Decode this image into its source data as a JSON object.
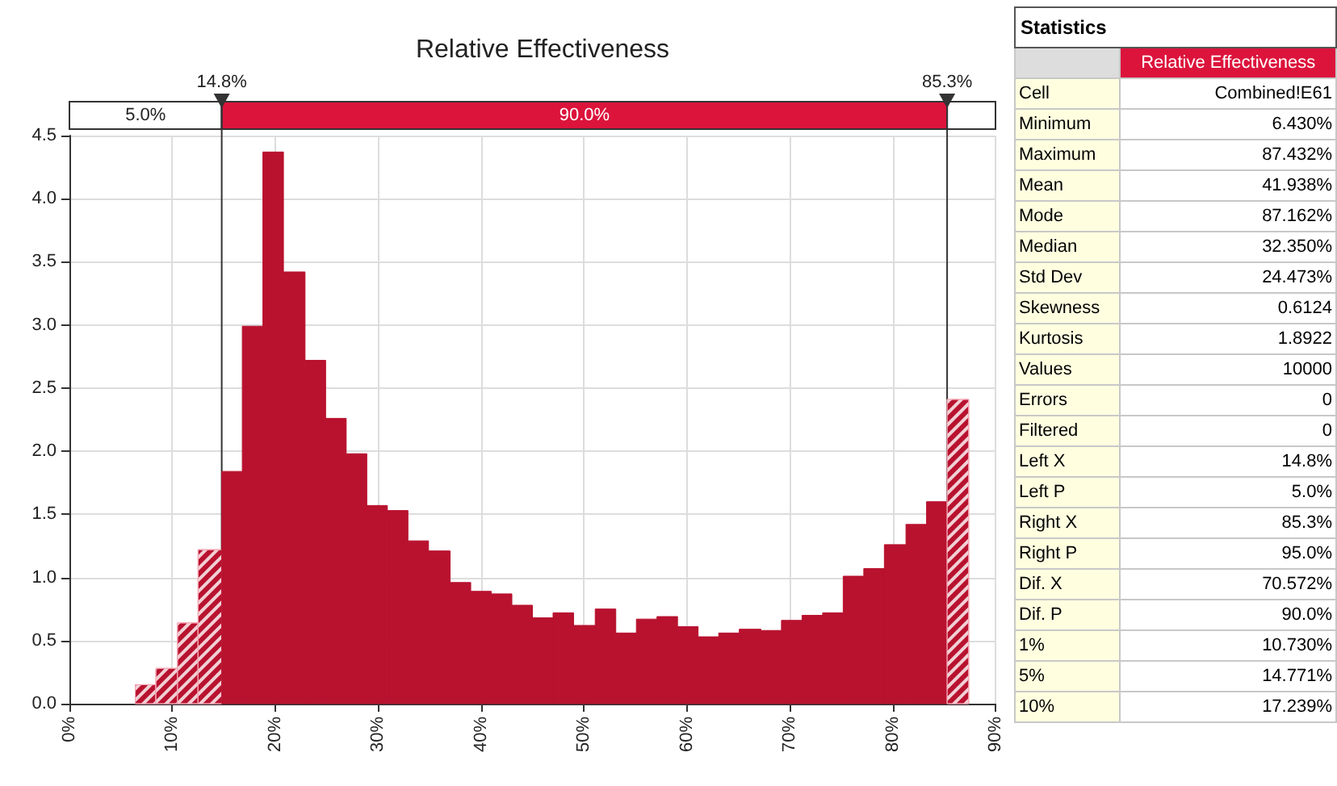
{
  "chart_data": [
    {
      "type": "histogram",
      "title": "Relative Effectiveness",
      "color": "#b8122f",
      "bins": [
        6.4,
        8.4,
        10.5,
        12.5,
        14.8,
        16.8,
        18.8,
        20.8,
        22.9,
        24.9,
        26.9,
        28.9,
        30.9,
        32.9,
        34.9,
        37.0,
        39.0,
        41.0,
        43.0,
        45.0,
        47.0,
        49.0,
        51.1,
        53.1,
        55.1,
        57.1,
        59.1,
        61.1,
        63.1,
        65.1,
        67.2,
        69.2,
        71.2,
        73.2,
        75.2,
        77.2,
        79.2,
        81.3,
        83.3,
        85.3,
        87.4
      ],
      "values": [
        0.15,
        0.28,
        0.64,
        1.22,
        1.84,
        2.99,
        4.37,
        3.42,
        2.72,
        2.26,
        1.98,
        1.57,
        1.53,
        1.29,
        1.21,
        0.96,
        0.89,
        0.87,
        0.78,
        0.68,
        0.72,
        0.62,
        0.75,
        0.56,
        0.67,
        0.69,
        0.61,
        0.53,
        0.56,
        0.59,
        0.58,
        0.66,
        0.7,
        0.72,
        1.01,
        1.07,
        1.26,
        1.42,
        1.6,
        2.41
      ],
      "xlim": [
        0,
        90
      ],
      "xticks": [
        {
          "value": 0,
          "label": "0%"
        },
        {
          "value": 10,
          "label": "10%"
        },
        {
          "value": 20,
          "label": "20%"
        },
        {
          "value": 30,
          "label": "30%"
        },
        {
          "value": 40,
          "label": "40%"
        },
        {
          "value": 50,
          "label": "50%"
        },
        {
          "value": 60,
          "label": "60%"
        },
        {
          "value": 70,
          "label": "70%"
        },
        {
          "value": 80,
          "label": "80%"
        },
        {
          "value": 90,
          "label": "90%"
        }
      ],
      "ylim": [
        0,
        4.5
      ],
      "yticks": [
        {
          "value": 0,
          "label": "0.0"
        },
        {
          "value": 0.5,
          "label": "0.5"
        },
        {
          "value": 1,
          "label": "1.0"
        },
        {
          "value": 1.5,
          "label": "1.5"
        },
        {
          "value": 2,
          "label": "2.0"
        },
        {
          "value": 2.5,
          "label": "2.5"
        },
        {
          "value": 3,
          "label": "3.0"
        },
        {
          "value": 3.5,
          "label": "3.5"
        },
        {
          "value": 4,
          "label": "4.0"
        },
        {
          "value": 4.5,
          "label": "4.5"
        }
      ],
      "grid": true,
      "ref_lines": [
        {
          "axis": "x",
          "value": 14.8,
          "label": "14.8%"
        },
        {
          "axis": "x",
          "value": 85.3,
          "label": "85.3%"
        }
      ],
      "annotations": [
        "5.0%",
        "90.0%"
      ]
    },
    {
      "type": "other",
      "title": "Statistics",
      "subtitle": "Relative Effectiveness",
      "categories": [
        "Cell",
        "Minimum",
        "Maximum",
        "Mean",
        "Mode",
        "Median",
        "Std Dev",
        "Skewness",
        "Kurtosis",
        "Values",
        "Errors",
        "Filtered",
        "Left X",
        "Left P",
        "Right X",
        "Right P",
        "Dif. X",
        "Dif. P",
        "1%",
        "5%",
        "10%"
      ],
      "value_labels": [
        "Combined!E61",
        "6.430%",
        "87.432%",
        "41.938%",
        "87.162%",
        "32.350%",
        "24.473%",
        "0.6124",
        "1.8922",
        "10000",
        "0",
        "0",
        "14.8%",
        "5.0%",
        "85.3%",
        "95.0%",
        "70.572%",
        "90.0%",
        "10.730%",
        "14.771%",
        "17.239%"
      ]
    }
  ]
}
